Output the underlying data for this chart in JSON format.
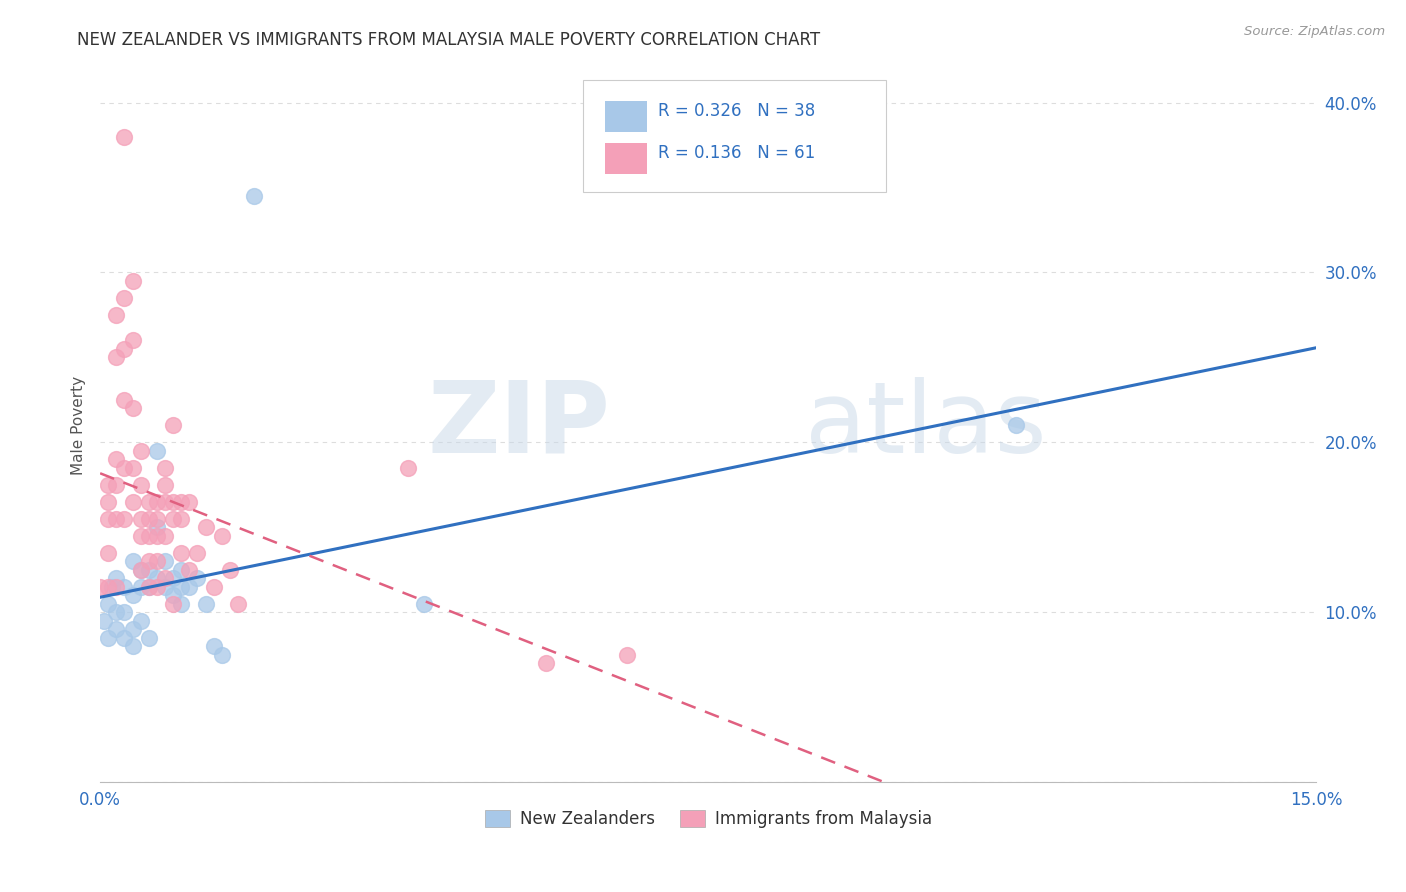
{
  "title": "NEW ZEALANDER VS IMMIGRANTS FROM MALAYSIA MALE POVERTY CORRELATION CHART",
  "source": "Source: ZipAtlas.com",
  "ylabel": "Male Poverty",
  "xlim": [
    0.0,
    0.15
  ],
  "ylim": [
    0.0,
    0.42
  ],
  "xticks": [
    0.0,
    0.03,
    0.06,
    0.09,
    0.12,
    0.15
  ],
  "xtick_labels": [
    "0.0%",
    "",
    "",
    "",
    "",
    "15.0%"
  ],
  "yticks": [
    0.0,
    0.1,
    0.2,
    0.3,
    0.4
  ],
  "ytick_labels": [
    "",
    "10.0%",
    "20.0%",
    "30.0%",
    "40.0%"
  ],
  "nz_color": "#a8c8e8",
  "mal_color": "#f4a0b8",
  "nz_line_color": "#3070c0",
  "mal_line_color": "#e06080",
  "nz_R": 0.326,
  "nz_N": 38,
  "mal_R": 0.136,
  "mal_N": 61,
  "nz_x": [
    0.0005,
    0.001,
    0.001,
    0.0015,
    0.002,
    0.002,
    0.002,
    0.003,
    0.003,
    0.003,
    0.004,
    0.004,
    0.004,
    0.004,
    0.005,
    0.005,
    0.005,
    0.006,
    0.006,
    0.006,
    0.007,
    0.007,
    0.007,
    0.008,
    0.008,
    0.009,
    0.009,
    0.01,
    0.01,
    0.01,
    0.011,
    0.012,
    0.013,
    0.014,
    0.015,
    0.019,
    0.04,
    0.113
  ],
  "nz_y": [
    0.095,
    0.105,
    0.085,
    0.115,
    0.12,
    0.1,
    0.09,
    0.115,
    0.1,
    0.085,
    0.13,
    0.11,
    0.09,
    0.08,
    0.125,
    0.115,
    0.095,
    0.125,
    0.115,
    0.085,
    0.195,
    0.15,
    0.12,
    0.13,
    0.115,
    0.12,
    0.11,
    0.125,
    0.115,
    0.105,
    0.115,
    0.12,
    0.105,
    0.08,
    0.075,
    0.345,
    0.105,
    0.21
  ],
  "mal_x": [
    0.0,
    0.001,
    0.001,
    0.001,
    0.001,
    0.001,
    0.002,
    0.002,
    0.002,
    0.002,
    0.002,
    0.002,
    0.003,
    0.003,
    0.003,
    0.003,
    0.003,
    0.003,
    0.004,
    0.004,
    0.004,
    0.004,
    0.004,
    0.005,
    0.005,
    0.005,
    0.005,
    0.005,
    0.006,
    0.006,
    0.006,
    0.006,
    0.006,
    0.007,
    0.007,
    0.007,
    0.007,
    0.007,
    0.008,
    0.008,
    0.008,
    0.008,
    0.008,
    0.009,
    0.009,
    0.009,
    0.009,
    0.01,
    0.01,
    0.01,
    0.011,
    0.011,
    0.012,
    0.013,
    0.014,
    0.015,
    0.016,
    0.017,
    0.038,
    0.055,
    0.065
  ],
  "mal_y": [
    0.115,
    0.175,
    0.165,
    0.155,
    0.135,
    0.115,
    0.275,
    0.25,
    0.19,
    0.175,
    0.155,
    0.115,
    0.38,
    0.285,
    0.255,
    0.225,
    0.185,
    0.155,
    0.295,
    0.26,
    0.22,
    0.185,
    0.165,
    0.195,
    0.175,
    0.155,
    0.145,
    0.125,
    0.165,
    0.155,
    0.145,
    0.13,
    0.115,
    0.165,
    0.155,
    0.145,
    0.13,
    0.115,
    0.185,
    0.175,
    0.165,
    0.145,
    0.12,
    0.21,
    0.165,
    0.155,
    0.105,
    0.165,
    0.155,
    0.135,
    0.165,
    0.125,
    0.135,
    0.15,
    0.115,
    0.145,
    0.125,
    0.105,
    0.185,
    0.07,
    0.075
  ],
  "watermark_zip": "ZIP",
  "watermark_atlas": "atlas",
  "background_color": "#ffffff",
  "grid_color": "#dddddd",
  "legend_color": "#3070c0"
}
